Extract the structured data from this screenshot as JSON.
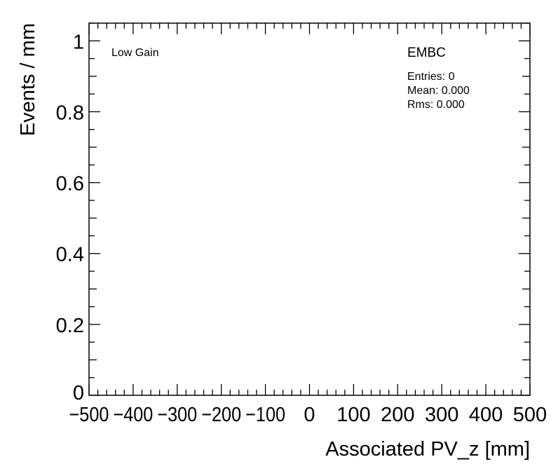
{
  "chart_data": {
    "type": "bar",
    "title": "",
    "xlabel": "Associated PV_z [mm]",
    "ylabel": "Events / mm",
    "xlim": [
      -500,
      500
    ],
    "ylim": [
      0,
      1.05
    ],
    "x_ticks": [
      "−500",
      "−400",
      "−300",
      "−200",
      "−100",
      "0",
      "100",
      "200",
      "300",
      "400",
      "500"
    ],
    "x_tick_values": [
      -500,
      -400,
      -300,
      -200,
      -100,
      0,
      100,
      200,
      300,
      400,
      500
    ],
    "y_ticks": [
      "0",
      "0.2",
      "0.4",
      "0.6",
      "0.8",
      "1"
    ],
    "y_tick_values": [
      0,
      0.2,
      0.4,
      0.6,
      0.8,
      1
    ],
    "series": [
      {
        "name": "EMBC",
        "values": []
      }
    ],
    "grid": false,
    "annotation": "Low Gain",
    "stats": {
      "title": "EMBC",
      "entries": "Entries: 0",
      "mean": "Mean: 0.000",
      "rms": "Rms: 0.000"
    }
  }
}
